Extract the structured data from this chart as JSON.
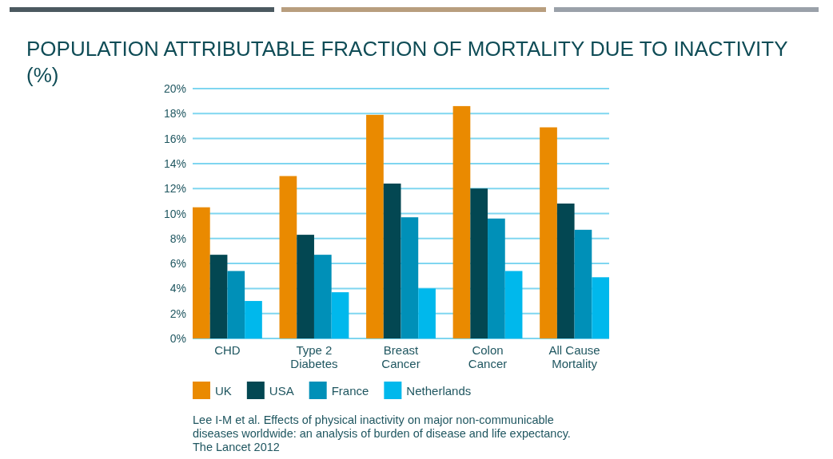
{
  "chart_data": {
    "type": "bar",
    "title": "POPULATION ATTRIBUTABLE FRACTION OF MORTALITY DUE TO INACTIVITY (%)",
    "categories": [
      "CHD",
      "Type 2 Diabetes",
      "Breast Cancer",
      "Colon Cancer",
      "All Cause Mortality"
    ],
    "series": [
      {
        "name": "UK",
        "color": "#ea8a00",
        "values": [
          10.5,
          13.0,
          17.9,
          18.6,
          16.9
        ]
      },
      {
        "name": "USA",
        "color": "#034752",
        "values": [
          6.7,
          8.3,
          12.4,
          12.0,
          10.8
        ]
      },
      {
        "name": "France",
        "color": "#0090b8",
        "values": [
          5.4,
          6.7,
          9.7,
          9.6,
          8.7
        ]
      },
      {
        "name": "Netherlands",
        "color": "#00b8ec",
        "values": [
          3.0,
          3.7,
          4.0,
          5.4,
          4.9
        ]
      }
    ],
    "ylim": [
      0,
      20
    ],
    "yticks": [
      {
        "value": 0,
        "label": "0%"
      },
      {
        "value": 2,
        "label": "2%"
      },
      {
        "value": 4,
        "label": "4%"
      },
      {
        "value": 6,
        "label": "6%"
      },
      {
        "value": 8,
        "label": "8%"
      },
      {
        "value": 10,
        "label": "10%"
      },
      {
        "value": 12,
        "label": "12%"
      },
      {
        "value": 14,
        "label": "14%"
      },
      {
        "value": 16,
        "label": "16%"
      },
      {
        "value": 18,
        "label": "18%"
      },
      {
        "value": 20,
        "label": "20%"
      }
    ],
    "grid": "y",
    "legend": "bottom",
    "annotations": [
      "Lee I-M et al. Effects of physical inactivity on major non-communicable diseases worldwide: an analysis of burden of disease and life expectancy. The Lancet 2012"
    ]
  }
}
